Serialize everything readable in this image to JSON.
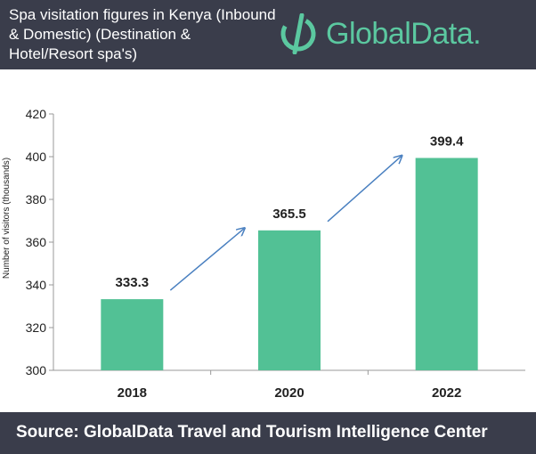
{
  "header": {
    "title": "Spa visitation figures in Kenya (Inbound & Domestic) (Destination & Hotel/Resort spa's)",
    "logo_text": "GlobalData."
  },
  "colors": {
    "header_bg": "#3a3d4b",
    "bar": "#52c195",
    "arrow": "#4a80c0",
    "brand": "#5bc8a0"
  },
  "chart_data": {
    "type": "bar",
    "title": "Spa visitation figures in Kenya (Inbound & Domestic) (Destination & Hotel/Resort spa's)",
    "categories": [
      "2018",
      "2020",
      "2022"
    ],
    "values": [
      333.3,
      365.5,
      399.4
    ],
    "data_labels": [
      "333.3",
      "365.5",
      "399.4"
    ],
    "xlabel": "",
    "ylabel": "Number of visitors (thousands)",
    "ylim": [
      300,
      420
    ],
    "yticks": [
      300,
      320,
      340,
      360,
      380,
      400,
      420
    ],
    "grid": false,
    "legend": "none",
    "annotations": [
      "upward arrow 2018 to 2020",
      "upward arrow 2020 to 2022"
    ]
  },
  "footer": {
    "source": "Source:  GlobalData Travel and Tourism Intelligence Center"
  }
}
